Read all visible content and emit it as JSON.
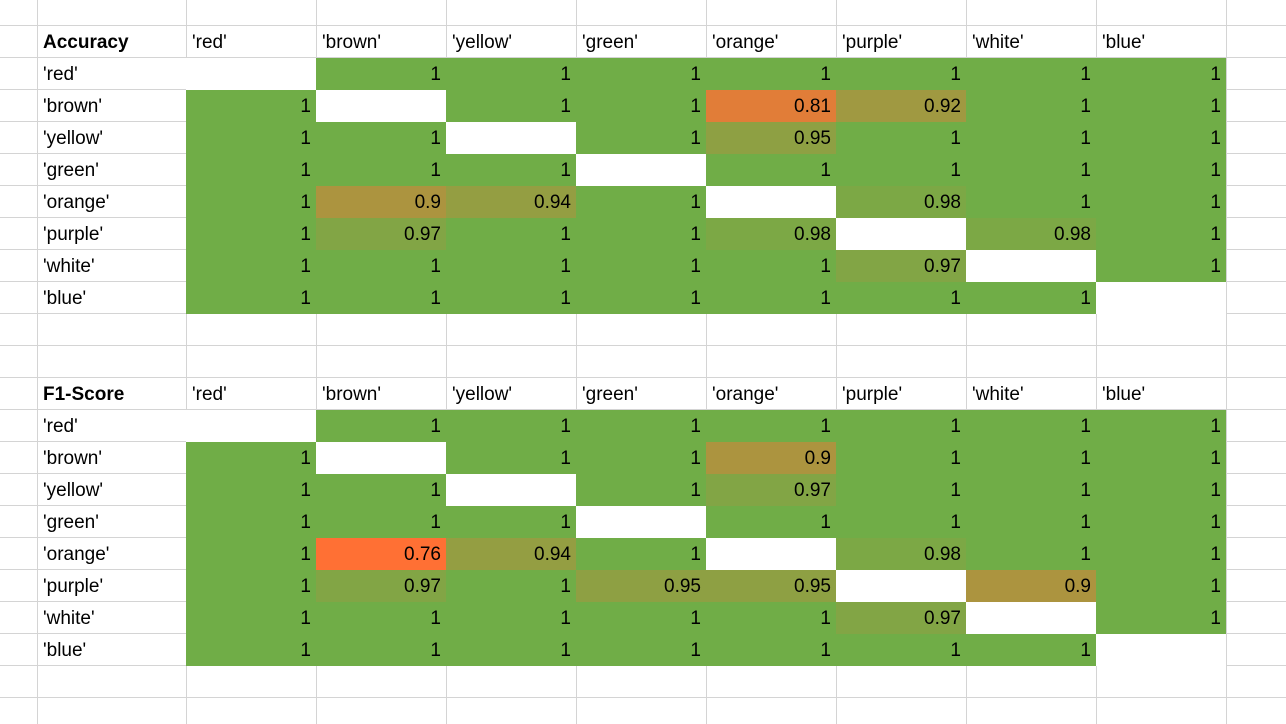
{
  "colors": {
    "perfect": "#70ad47",
    "worst": "#ff7034",
    "gridline": "#d4d4d4",
    "diagonal": "#ffffff"
  },
  "chart_data": [
    {
      "type": "heatmap",
      "title": "Accuracy",
      "categories": [
        "'red'",
        "'brown'",
        "'yellow'",
        "'green'",
        "'orange'",
        "'purple'",
        "'white'",
        "'blue'"
      ],
      "rows": [
        "'red'",
        "'brown'",
        "'yellow'",
        "'green'",
        "'orange'",
        "'purple'",
        "'white'",
        "'blue'"
      ],
      "values": [
        [
          null,
          1,
          1,
          1,
          1,
          1,
          1,
          1
        ],
        [
          1,
          null,
          1,
          1,
          0.81,
          0.92,
          1,
          1
        ],
        [
          1,
          1,
          null,
          1,
          0.95,
          1,
          1,
          1
        ],
        [
          1,
          1,
          1,
          null,
          1,
          1,
          1,
          1
        ],
        [
          1,
          0.9,
          0.94,
          1,
          null,
          0.98,
          1,
          1
        ],
        [
          1,
          0.97,
          1,
          1,
          0.98,
          null,
          0.98,
          1
        ],
        [
          1,
          1,
          1,
          1,
          1,
          0.97,
          null,
          1
        ],
        [
          1,
          1,
          1,
          1,
          1,
          1,
          1,
          null
        ]
      ]
    },
    {
      "type": "heatmap",
      "title": "F1-Score",
      "categories": [
        "'red'",
        "'brown'",
        "'yellow'",
        "'green'",
        "'orange'",
        "'purple'",
        "'white'",
        "'blue'"
      ],
      "rows": [
        "'red'",
        "'brown'",
        "'yellow'",
        "'green'",
        "'orange'",
        "'purple'",
        "'white'",
        "'blue'"
      ],
      "values": [
        [
          null,
          1,
          1,
          1,
          1,
          1,
          1,
          1
        ],
        [
          1,
          null,
          1,
          1,
          0.9,
          1,
          1,
          1
        ],
        [
          1,
          1,
          null,
          1,
          0.97,
          1,
          1,
          1
        ],
        [
          1,
          1,
          1,
          null,
          1,
          1,
          1,
          1
        ],
        [
          1,
          0.76,
          0.94,
          1,
          null,
          0.98,
          1,
          1
        ],
        [
          1,
          0.97,
          1,
          0.95,
          0.95,
          null,
          0.9,
          1
        ],
        [
          1,
          1,
          1,
          1,
          1,
          0.97,
          null,
          1
        ],
        [
          1,
          1,
          1,
          1,
          1,
          1,
          1,
          null
        ]
      ]
    }
  ]
}
